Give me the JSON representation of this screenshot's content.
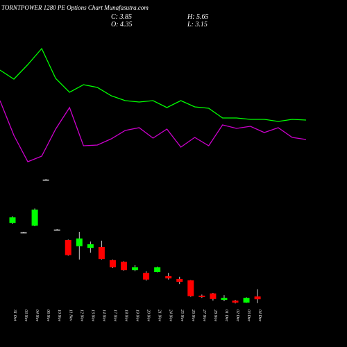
{
  "chart_data": {
    "type": "candlestick",
    "title": "TORNTPOWER 1280 PE Options Chart Munafasutra.com",
    "info": {
      "close": "C: 3.85",
      "high": "H: 5.65",
      "open": "O: 4.35",
      "low": "L: 3.15"
    },
    "categories": [
      "31 Oct",
      "03 Nov",
      "04 Nov",
      "06 Nov",
      "10 Nov",
      "11 Nov",
      "12 Nov",
      "13 Nov",
      "14 Nov",
      "17 Nov",
      "18 Nov",
      "19 Nov",
      "20 Nov",
      "21 Nov",
      "24 Nov",
      "25 Nov",
      "26 Nov",
      "27 Nov",
      "28 Nov",
      "01 Dec",
      "02 Dec",
      "03 Dec",
      "04 Dec"
    ],
    "open": [
      17.6,
      15.9,
      17.1,
      25.4,
      16.4,
      14.5,
      13.4,
      13.1,
      13.25,
      10.9,
      10.6,
      9.1,
      8.6,
      8.75,
      8.0,
      7.5,
      7.25,
      4.5,
      4.9,
      3.75,
      3.6,
      3.25,
      4.35
    ],
    "high": [
      18.8,
      16.0,
      20.2,
      25.5,
      16.5,
      14.6,
      16.0,
      14.25,
      14.4,
      11.0,
      10.7,
      10.0,
      8.9,
      9.7,
      8.6,
      7.9,
      7.3,
      4.7,
      5.0,
      4.6,
      3.75,
      4.2,
      5.65
    ],
    "low": [
      17.4,
      15.8,
      17.0,
      25.3,
      16.3,
      11.7,
      11.0,
      12.25,
      11.0,
      9.5,
      9.0,
      8.9,
      7.2,
      8.7,
      7.4,
      6.6,
      4.3,
      4.1,
      3.6,
      3.5,
      3.1,
      3.2,
      3.15
    ],
    "close": [
      18.6,
      15.9,
      20.0,
      25.4,
      16.4,
      11.8,
      14.8,
      13.75,
      11.1,
      9.6,
      9.1,
      9.6,
      7.4,
      9.6,
      7.6,
      7.0,
      4.4,
      4.25,
      3.9,
      4.1,
      3.25,
      4.1,
      3.85
    ],
    "ylim": [
      0,
      26
    ],
    "up_color": "#00ff00",
    "down_color": "#ff0000",
    "lines": {
      "ylim": [
        0,
        250
      ],
      "series": [
        {
          "color": "#00ff00",
          "values": [
            149,
            136,
            157,
            180,
            137,
            117,
            128,
            124,
            112,
            105,
            103,
            105,
            95,
            105,
            96,
            94,
            80,
            80,
            78,
            78,
            75,
            78,
            77
          ]
        },
        {
          "color": "#cc00cc",
          "values": [
            105,
            55,
            17,
            25,
            64,
            95,
            40,
            41,
            50,
            62,
            66,
            51,
            64,
            38,
            52,
            40,
            70,
            65,
            68,
            59,
            66,
            52,
            49
          ]
        }
      ]
    }
  }
}
